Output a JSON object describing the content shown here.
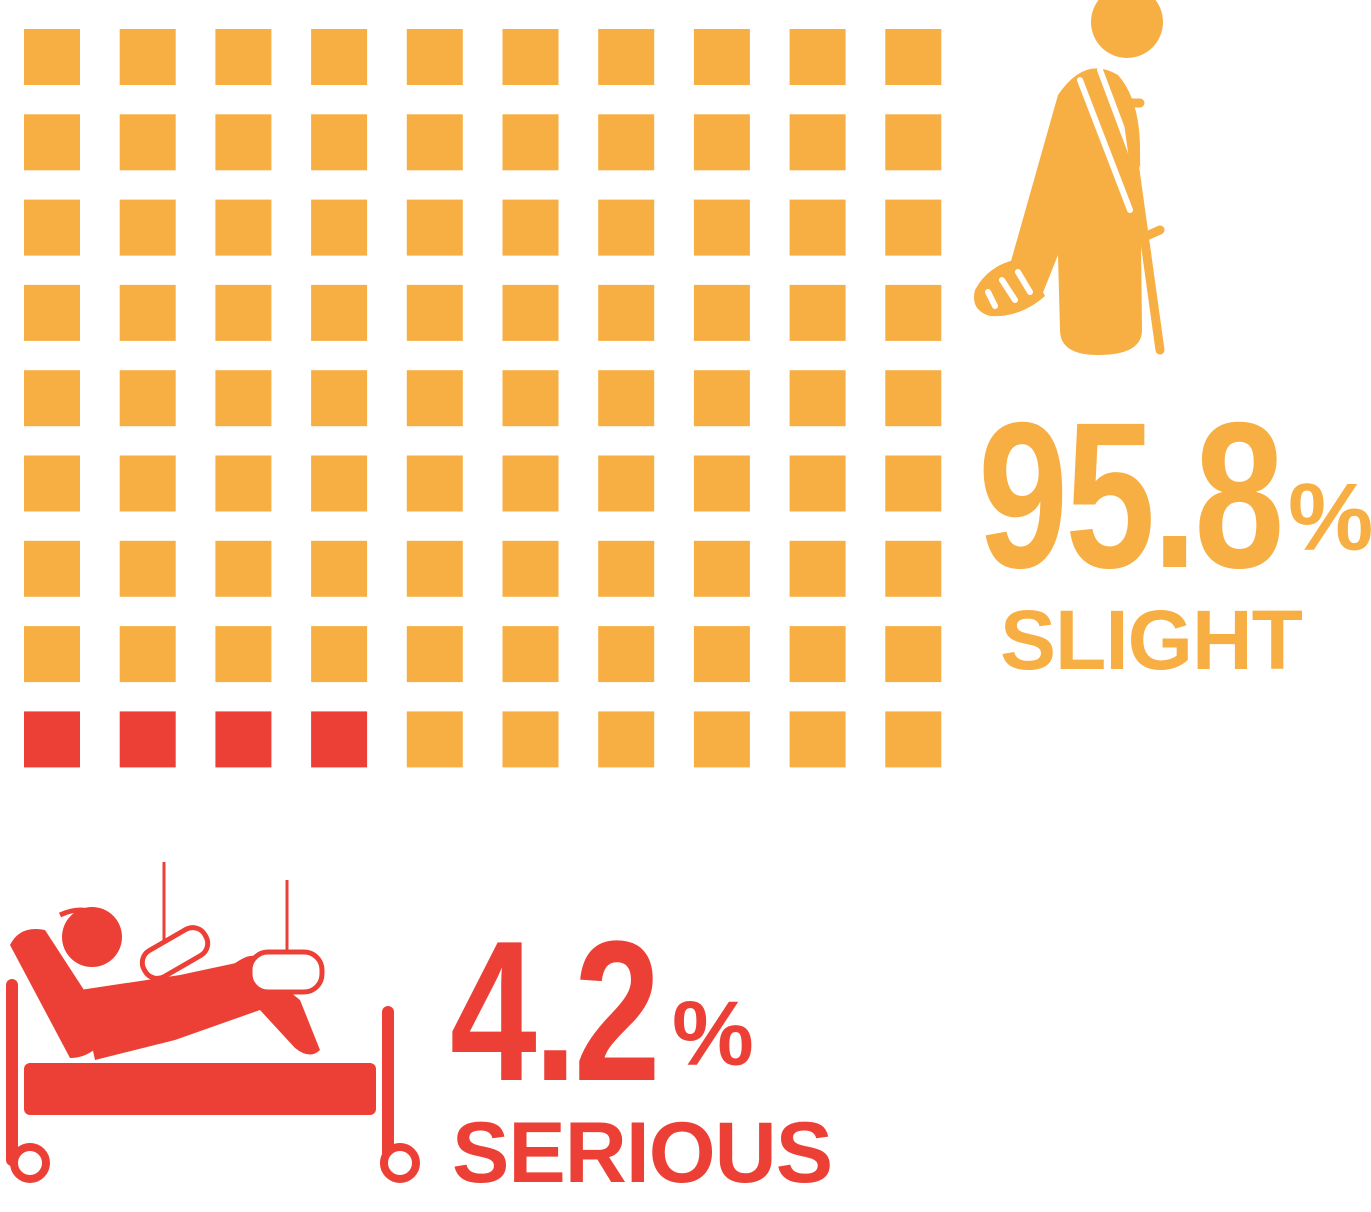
{
  "chart_data": {
    "type": "waffle",
    "grid": {
      "rows": 9,
      "cols": 10
    },
    "series": [
      {
        "name": "SLIGHT",
        "value": 95.8,
        "value_label": "95.8",
        "unit": "%",
        "color": "#f7ae43",
        "icon": "person-on-crutches-icon"
      },
      {
        "name": "SERIOUS",
        "value": 4.2,
        "value_label": "4.2",
        "unit": "%",
        "color": "#ec4037",
        "icon": "patient-in-hospital-bed-icon"
      }
    ],
    "serious_cells": 4
  }
}
